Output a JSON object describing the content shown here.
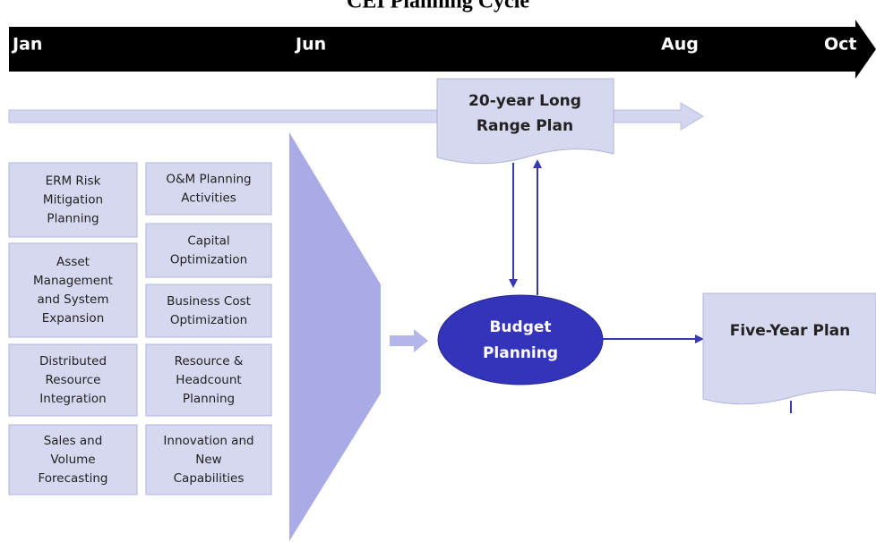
{
  "title": "CEI Planning Cycle",
  "timeline": [
    "Jan",
    "Jun",
    "Aug",
    "Oct"
  ],
  "long_range_plan": [
    "20-year Long",
    "Range Plan"
  ],
  "budget": [
    "Budget",
    "Planning"
  ],
  "five_year_plan": "Five-Year Plan",
  "left_boxes": [
    [
      "ERM Risk",
      "Mitigation",
      "Planning"
    ],
    [
      "Asset",
      "Management",
      "and System",
      "Expansion"
    ],
    [
      "Distributed",
      "Resource",
      "Integration"
    ],
    [
      "Sales and",
      "Volume",
      "Forecasting"
    ]
  ],
  "right_boxes": [
    [
      "O&M Planning",
      "Activities"
    ],
    [
      "Capital",
      "Optimization"
    ],
    [
      "Business Cost",
      "Optimization"
    ],
    [
      "Resource &",
      "Headcount",
      "Planning"
    ],
    [
      "Innovation and",
      "New",
      "Capabilities"
    ]
  ]
}
